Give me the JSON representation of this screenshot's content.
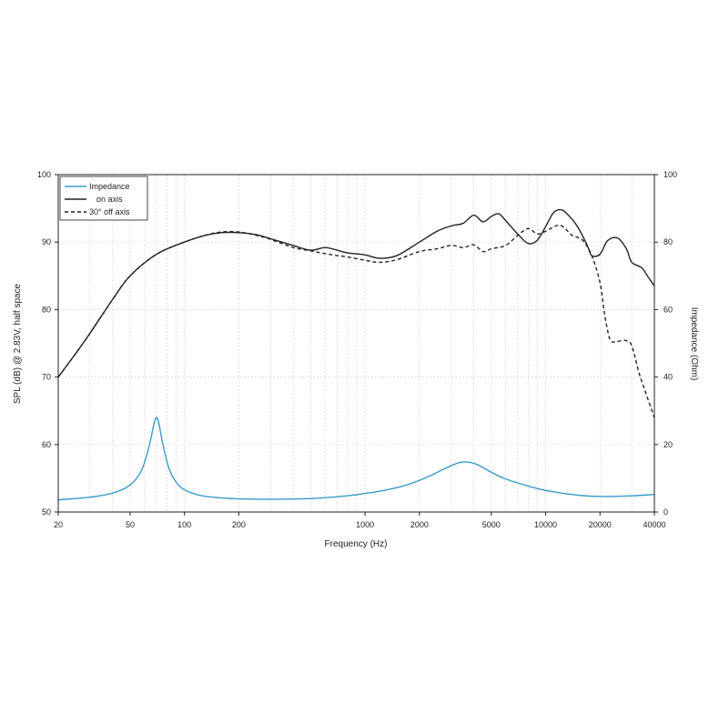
{
  "chart_data": {
    "type": "line",
    "xlabel": "Frequency (Hz)",
    "ylabel_left": "SPL (dB) @ 2.83V, half space",
    "ylabel_right": "Impedance (Ohm)",
    "x_scale": "log",
    "xlim": [
      20,
      40000
    ],
    "ylim_left": [
      50,
      100
    ],
    "ylim_right": [
      0,
      100
    ],
    "x_ticks": [
      20,
      50,
      100,
      200,
      1000,
      2000,
      5000,
      10000,
      20000,
      40000
    ],
    "x_tick_labels": [
      "20",
      "50",
      "100",
      "200",
      "1000",
      "2000",
      "5000",
      "10000",
      "20000",
      "40000"
    ],
    "y_left_ticks": [
      50,
      60,
      70,
      80,
      90,
      100
    ],
    "y_left_tick_labels": [
      "50",
      "60",
      "70",
      "80",
      "90",
      "100"
    ],
    "y_right_ticks": [
      0,
      20,
      40,
      60,
      80,
      100
    ],
    "y_right_tick_labels": [
      "0",
      "20",
      "40",
      "60",
      "80",
      "100"
    ],
    "grid": true,
    "legend_position": "top-left",
    "series": [
      {
        "name": "Impedance",
        "axis": "right",
        "color": "#3a9ac9",
        "dash": "solid",
        "x": [
          20,
          30,
          40,
          50,
          58,
          64,
          68,
          70,
          72,
          76,
          82,
          90,
          100,
          120,
          150,
          200,
          300,
          500,
          800,
          1000,
          1300,
          1700,
          2200,
          2800,
          3300,
          3700,
          4200,
          5000,
          6000,
          8000,
          10000,
          15000,
          20000,
          30000,
          40000
        ],
        "y": [
          3.6,
          4.4,
          5.6,
          8.0,
          12.5,
          20.0,
          26.5,
          28.0,
          26.5,
          20.0,
          13.0,
          8.8,
          6.6,
          5.0,
          4.3,
          3.9,
          3.8,
          4.0,
          4.8,
          5.5,
          6.5,
          8.0,
          10.3,
          13.0,
          14.6,
          14.8,
          14.0,
          11.8,
          9.8,
          7.7,
          6.4,
          5.0,
          4.6,
          4.8,
          5.2
        ]
      },
      {
        "name": "on axis",
        "axis": "left",
        "color": "#222222",
        "dash": "solid",
        "x": [
          20,
          25,
          30,
          40,
          50,
          70,
          100,
          130,
          160,
          200,
          250,
          300,
          400,
          500,
          600,
          700,
          800,
          1000,
          1200,
          1500,
          2000,
          2500,
          3000,
          3500,
          4000,
          4500,
          5000,
          5500,
          6000,
          7000,
          8000,
          9000,
          10000,
          11000,
          12000,
          13000,
          15000,
          17000,
          18000,
          20000,
          22000,
          25000,
          28000,
          30000,
          34000,
          37000,
          40000
        ],
        "y": [
          70.0,
          73.5,
          76.5,
          81.5,
          85.0,
          88.2,
          90.0,
          91.0,
          91.4,
          91.4,
          91.1,
          90.5,
          89.5,
          88.8,
          89.2,
          88.8,
          88.4,
          88.1,
          87.6,
          88.0,
          90.0,
          91.6,
          92.4,
          92.8,
          94.0,
          93.0,
          93.8,
          94.2,
          93.2,
          91.2,
          89.8,
          90.3,
          92.3,
          94.3,
          94.8,
          94.3,
          92.3,
          89.5,
          88.0,
          88.2,
          90.2,
          90.6,
          89.0,
          87.0,
          86.2,
          84.8,
          83.5
        ]
      },
      {
        "name": "30° off axis",
        "axis": "left",
        "color": "#222222",
        "dash": "dashed",
        "x": [
          20,
          25,
          30,
          40,
          50,
          70,
          100,
          130,
          160,
          200,
          250,
          300,
          400,
          500,
          600,
          700,
          800,
          1000,
          1200,
          1500,
          2000,
          2500,
          3000,
          3500,
          4000,
          4500,
          5000,
          6000,
          7000,
          8000,
          9000,
          10000,
          12000,
          14000,
          16000,
          18000,
          20000,
          21000,
          22000,
          23000,
          25000,
          28000,
          30000,
          33000,
          36000,
          40000
        ],
        "y": [
          70.0,
          73.5,
          76.5,
          81.5,
          85.0,
          88.2,
          90.0,
          91.0,
          91.5,
          91.5,
          91.0,
          90.4,
          89.2,
          88.7,
          88.3,
          88.0,
          87.8,
          87.3,
          87.0,
          87.4,
          88.6,
          89.0,
          89.5,
          89.2,
          89.6,
          88.6,
          89.0,
          89.5,
          91.0,
          92.0,
          91.2,
          91.6,
          92.5,
          91.0,
          90.3,
          88.0,
          84.0,
          80.0,
          77.0,
          75.3,
          75.3,
          75.4,
          74.6,
          70.5,
          67.5,
          64.0
        ]
      }
    ]
  }
}
